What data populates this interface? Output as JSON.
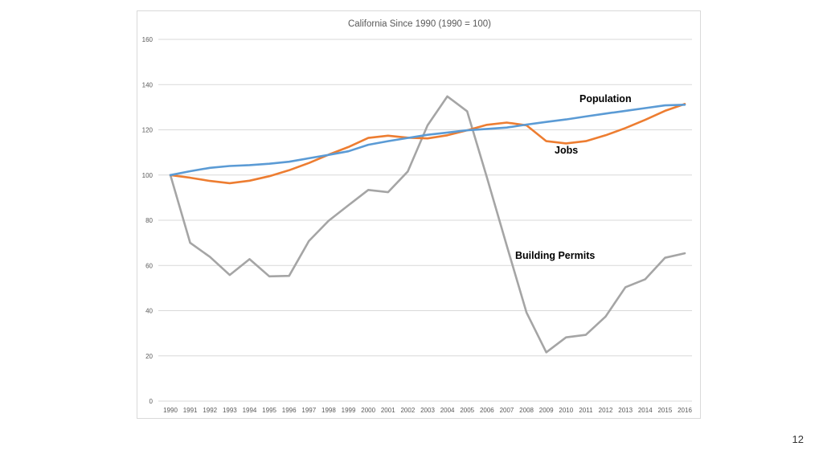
{
  "page_number": "12",
  "chart_data": {
    "type": "line",
    "title": "California Since 1990 (1990 = 100)",
    "xlabel": "",
    "ylabel": "",
    "ylim": [
      0,
      160
    ],
    "yticks": [
      0,
      20,
      40,
      60,
      80,
      100,
      120,
      140,
      160
    ],
    "grid": true,
    "categories": [
      "1990",
      "1991",
      "1992",
      "1993",
      "1994",
      "1995",
      "1996",
      "1997",
      "1998",
      "1999",
      "2000",
      "2001",
      "2002",
      "2003",
      "2004",
      "2005",
      "2006",
      "2007",
      "2008",
      "2009",
      "2010",
      "2011",
      "2012",
      "2013",
      "2014",
      "2015",
      "2016"
    ],
    "series": [
      {
        "name": "Population",
        "color": "#5b9bd5",
        "values": [
          100,
          101.7,
          103.2,
          104,
          104.4,
          105,
          105.9,
          107.4,
          108.9,
          110.5,
          113.4,
          115,
          116.4,
          117.8,
          118.8,
          119.8,
          120.4,
          121,
          122.3,
          123.5,
          124.6,
          125.9,
          127.2,
          128.4,
          129.6,
          130.8,
          131.1
        ]
      },
      {
        "name": "Jobs",
        "color": "#ed7d31",
        "values": [
          100,
          98.8,
          97.4,
          96.4,
          97.5,
          99.5,
          102.1,
          105.3,
          109,
          112.4,
          116.4,
          117.4,
          116.5,
          116.2,
          117.6,
          119.8,
          122.2,
          123.2,
          122,
          115,
          114,
          115,
          117.6,
          120.8,
          124.4,
          128.4,
          131.4
        ]
      },
      {
        "name": "Building Permits",
        "color": "#a5a5a5",
        "values": [
          100,
          70,
          63.8,
          55.8,
          62.8,
          55.2,
          55.4,
          70.8,
          79.8,
          86.6,
          93.4,
          92.4,
          101.6,
          122,
          134.8,
          128.2,
          99,
          68.8,
          39.2,
          21.6,
          28.2,
          29.3,
          37.4,
          50.4,
          53.9,
          63.4,
          65.4
        ]
      }
    ],
    "annotations": [
      {
        "text": "Population",
        "series": "Population"
      },
      {
        "text": "Jobs",
        "series": "Jobs"
      },
      {
        "text": "Building Permits",
        "series": "Building Permits"
      }
    ]
  }
}
